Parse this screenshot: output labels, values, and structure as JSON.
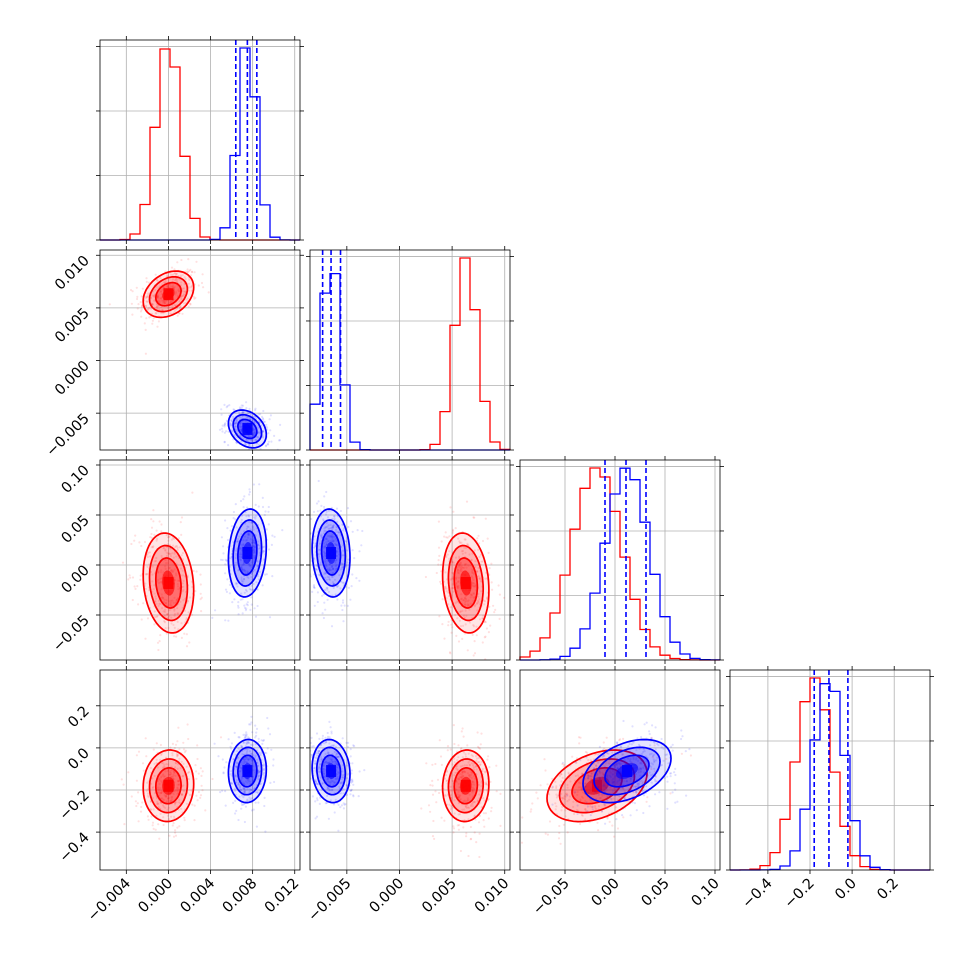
{
  "chart_data": {
    "type": "corner",
    "n_params": 4,
    "series": [
      {
        "name": "",
        "color": "#ff0000",
        "mean": [
          0.0,
          0.0063,
          -0.018,
          -0.18
        ],
        "sd": [
          0.0012,
          0.0011,
          0.025,
          0.085
        ],
        "corr": [
          [
            1,
            0.3,
            -0.15,
            0.05
          ],
          [
            0.3,
            1,
            -0.15,
            0.05
          ],
          [
            -0.15,
            -0.15,
            1,
            0.35
          ],
          [
            0.05,
            0.05,
            0.35,
            1
          ]
        ]
      },
      {
        "name": "",
        "color": "#0000ff",
        "mean": [
          0.0075,
          -0.0065,
          0.012,
          -0.11
        ],
        "sd": [
          0.0009,
          0.0009,
          0.022,
          0.075
        ],
        "corr": [
          [
            1,
            -0.3,
            0.15,
            0.05
          ],
          [
            -0.3,
            1,
            -0.1,
            -0.1
          ],
          [
            0.15,
            -0.1,
            1,
            0.4
          ],
          [
            0.05,
            -0.1,
            0.4,
            1
          ]
        ],
        "quantiles": [
          [
            0.0064,
            0.0075,
            0.0084
          ],
          [
            -0.0073,
            -0.0065,
            -0.0056
          ],
          [
            -0.01,
            0.011,
            0.031
          ],
          [
            -0.18,
            -0.11,
            -0.02
          ]
        ]
      }
    ],
    "ranges": [
      [
        -0.0065,
        0.0125
      ],
      [
        -0.0085,
        0.0105
      ],
      [
        -0.095,
        0.105
      ],
      [
        -0.58,
        0.37
      ]
    ],
    "ticks": [
      {
        "values": [
          -0.004,
          0.0,
          0.004,
          0.008,
          0.012
        ],
        "labels": [
          "−0.004",
          "0.000",
          "0.004",
          "0.008",
          "0.012"
        ]
      },
      {
        "values": [
          -0.005,
          0.0,
          0.005,
          0.01
        ],
        "labels": [
          "−0.005",
          "0.000",
          "0.005",
          "0.010"
        ]
      },
      {
        "values": [
          -0.05,
          0.0,
          0.05,
          0.1
        ],
        "labels": [
          "−0.05",
          "0.00",
          "0.05",
          "0.10"
        ]
      },
      {
        "values": [
          -0.4,
          -0.2,
          0.0,
          0.2
        ],
        "labels": [
          "−0.4",
          "−0.2",
          "0.0",
          "0.2"
        ]
      }
    ],
    "y_tick_labels": [
      {
        "values": [
          -0.005,
          0.0,
          0.005,
          0.01
        ],
        "labels": [
          "−0.005",
          "0.000",
          "0.005",
          "0.010"
        ]
      },
      {
        "values": [
          -0.05,
          0.0,
          0.05,
          0.1
        ],
        "labels": [
          "−0.05",
          "0.00",
          "0.05",
          "0.10"
        ]
      },
      {
        "values": [
          -0.4,
          -0.2,
          0.0,
          0.2
        ],
        "labels": [
          "−0.4",
          "−0.2",
          "0.0",
          "0.2"
        ]
      }
    ],
    "bins": 20,
    "contour_levels": [
      0.118,
      0.393,
      0.675,
      0.865
    ],
    "grid": true,
    "legend": "none"
  }
}
